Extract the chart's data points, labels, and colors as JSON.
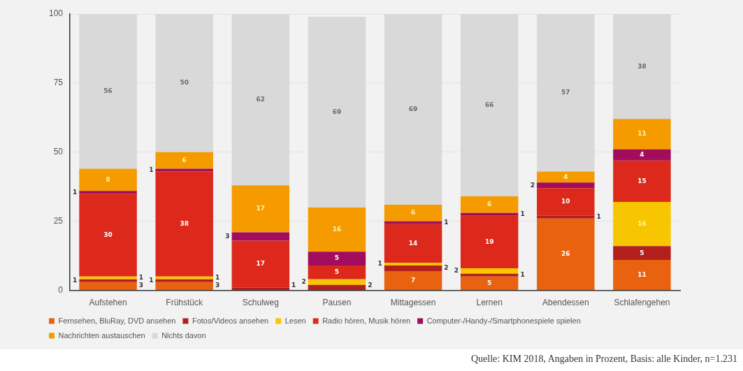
{
  "chart_data": {
    "type": "bar",
    "stacked": true,
    "categories": [
      "Aufstehen",
      "Frühstück",
      "Schulweg",
      "Pausen",
      "Mittagessen",
      "Lernen",
      "Abendessen",
      "Schlafengehen"
    ],
    "series": [
      {
        "name": "Fernsehen, BluRay, DVD ansehen",
        "color": "#e8620f",
        "values": [
          3,
          3,
          null,
          null,
          7,
          5,
          26,
          11
        ]
      },
      {
        "name": "Fotos/Videos ansehen",
        "color": "#b3201b",
        "values": [
          1,
          1,
          1,
          2,
          2,
          1,
          1,
          5
        ]
      },
      {
        "name": "Lesen",
        "color": "#f7c600",
        "values": [
          1,
          1,
          null,
          2,
          1,
          2,
          null,
          16
        ]
      },
      {
        "name": "Radio hören, Musik hören",
        "color": "#dc291c",
        "values": [
          30,
          38,
          17,
          5,
          14,
          19,
          10,
          15
        ]
      },
      {
        "name": "Computer-/Handy-/Smartphonespiele spielen",
        "color": "#a10d5c",
        "values": [
          1,
          1,
          3,
          5,
          1,
          1,
          2,
          4
        ]
      },
      {
        "name": "Nachrichten austauschen",
        "color": "#f59b00",
        "values": [
          8,
          6,
          17,
          16,
          6,
          6,
          4,
          11
        ]
      },
      {
        "name": "Nichts davon",
        "color": "#d9d9d9",
        "values": [
          56,
          50,
          62,
          69,
          69,
          66,
          57,
          38
        ]
      }
    ],
    "ylim": [
      0,
      100
    ],
    "yticks": [
      0,
      25,
      50,
      75,
      100
    ],
    "grid": "y",
    "legend": "bottom",
    "data_labels": true,
    "annotations": [
      "Quelle: KIM 2018, Angaben in Prozent, Basis: alle Kinder, n=1.231"
    ]
  }
}
